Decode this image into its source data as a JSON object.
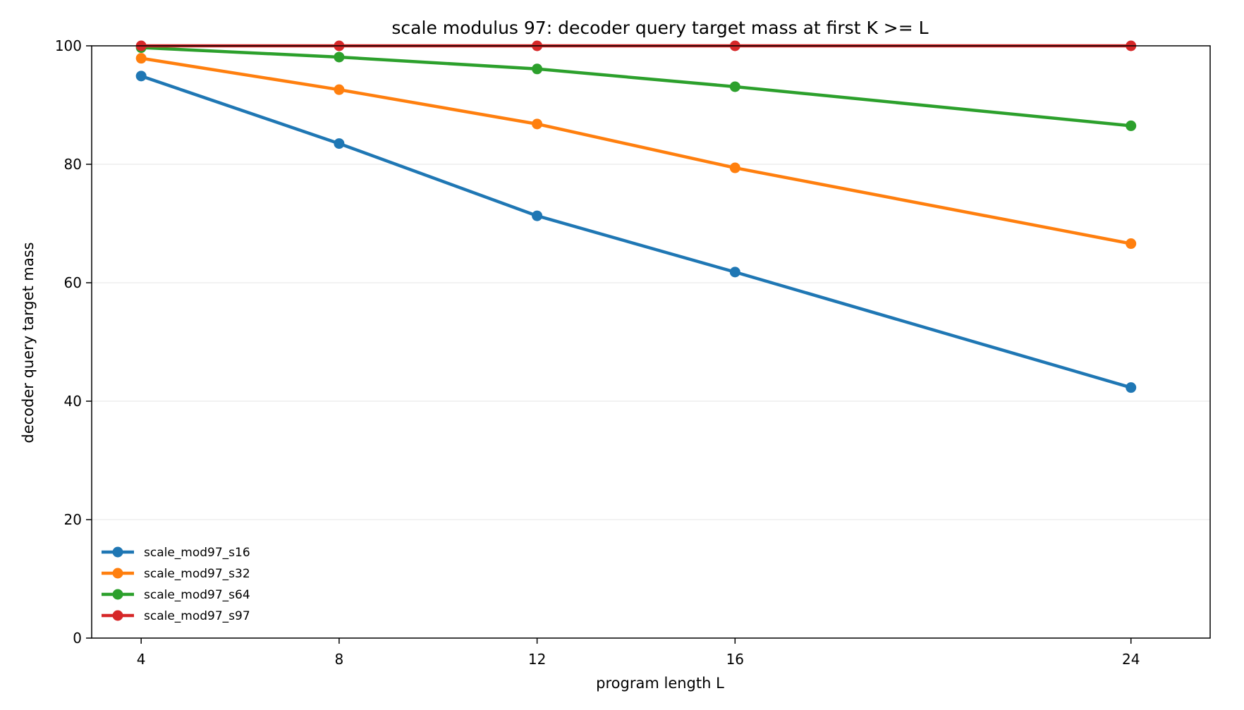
{
  "chart_data": {
    "type": "line",
    "title": "scale modulus 97: decoder query target mass at first K >= L",
    "xlabel": "program length L",
    "ylabel": "decoder query target mass",
    "x": [
      4,
      8,
      12,
      16,
      24
    ],
    "xticks": [
      "4",
      "8",
      "12",
      "16",
      "24"
    ],
    "yticks": [
      "0",
      "20",
      "40",
      "60",
      "80",
      "100"
    ],
    "xlim": [
      3,
      25.6
    ],
    "ylim": [
      0,
      100
    ],
    "grid": "horizontal",
    "legend_placement": "lower-left",
    "series": [
      {
        "name": "scale_mod97_s16",
        "color": "#1f77b4",
        "values": [
          94.9,
          83.5,
          71.3,
          61.8,
          42.3
        ]
      },
      {
        "name": "scale_mod97_s32",
        "color": "#ff7f0e",
        "values": [
          97.9,
          92.6,
          86.8,
          79.4,
          66.6
        ]
      },
      {
        "name": "scale_mod97_s64",
        "color": "#2ca02c",
        "values": [
          99.7,
          98.1,
          96.1,
          93.1,
          86.5
        ]
      },
      {
        "name": "scale_mod97_s97",
        "color": "#d62728",
        "values": [
          100,
          100,
          100,
          100,
          100
        ]
      }
    ]
  }
}
